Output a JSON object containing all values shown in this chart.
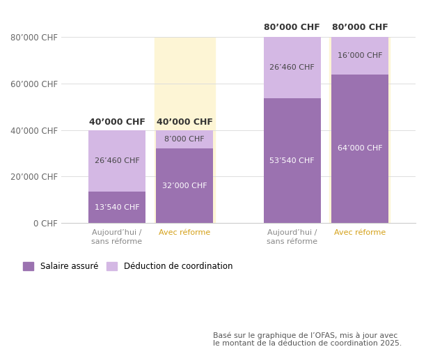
{
  "bars": [
    {
      "label": "Aujourd’hui /\nsans réforme",
      "label_color": "#888888",
      "gross_salary": 40000,
      "gross_label": "40’000 CHF",
      "gross_label_bold": true,
      "gross_label_color": "#333333",
      "insured_salary": 13540,
      "insured_label": "13’540 CHF",
      "coordination_deduction": 26460,
      "coordination_label": "26’460 CHF",
      "is_reform": false,
      "x": 0
    },
    {
      "label": "Avec réforme",
      "label_color": "#d4a017",
      "gross_salary": 40000,
      "gross_label": "40’000 CHF",
      "gross_label_bold": true,
      "gross_label_color": "#333333",
      "insured_salary": 32000,
      "insured_label": "32’000 CHF",
      "coordination_deduction": 8000,
      "coordination_label": "8’000 CHF",
      "is_reform": true,
      "x": 1
    },
    {
      "label": "Aujourd’hui /\nsans réforme",
      "label_color": "#888888",
      "gross_salary": 80000,
      "gross_label": "80’000 CHF",
      "gross_label_bold": true,
      "gross_label_color": "#333333",
      "insured_salary": 53540,
      "insured_label": "53’540 CHF",
      "coordination_deduction": 26460,
      "coordination_label": "26’460 CHF",
      "is_reform": false,
      "x": 2
    },
    {
      "label": "Avec réforme",
      "label_color": "#d4a017",
      "gross_salary": 80000,
      "gross_label": "80’000 CHF",
      "gross_label_bold": true,
      "gross_label_color": "#333333",
      "insured_salary": 64000,
      "insured_label": "64’000 CHF",
      "coordination_deduction": 16000,
      "coordination_label": "16’000 CHF",
      "is_reform": true,
      "x": 3
    }
  ],
  "color_insured": "#9b72b0",
  "color_coordination": "#d4b8e4",
  "color_reform_bg": "#fdf5d5",
  "yticks": [
    0,
    20000,
    40000,
    60000,
    80000
  ],
  "ytick_labels": [
    "0 CHF",
    "20’000 CHF",
    "40’000 CHF",
    "60’000 CHF",
    "80’000 CHF"
  ],
  "ymax": 80000,
  "legend_insured": "Salaire assuré",
  "legend_coordination": "Déduction de coordination",
  "footnote": "Basé sur le graphique de l’OFAS, mis à jour avec\nle montant de la déduction de coordination 2025.",
  "x_positions": [
    0.7,
    1.55,
    2.9,
    3.75
  ],
  "bar_width": 0.72,
  "xlim": [
    0.0,
    4.45
  ]
}
